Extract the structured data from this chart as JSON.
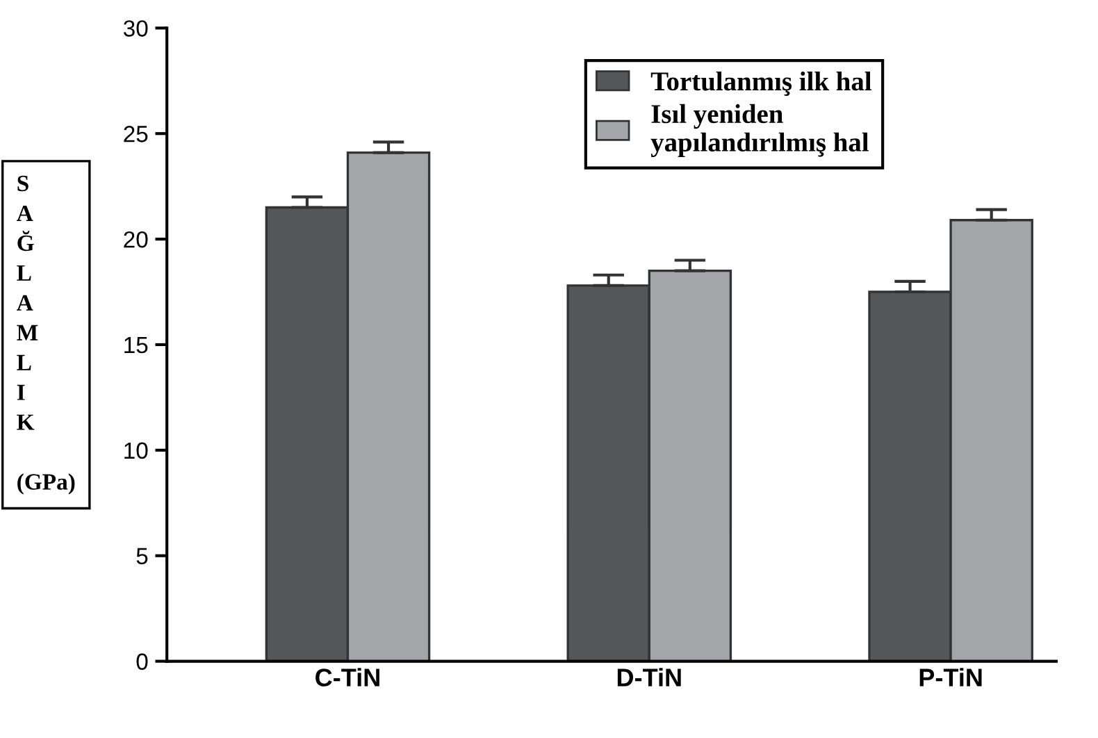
{
  "chart_data": {
    "type": "bar",
    "ylabel": "SAĞLAMLIK (GPa)",
    "categories": [
      "C-TiN",
      "D-TiN",
      "P-TiN"
    ],
    "series": [
      {
        "name": "Tortulanmış ilk hal",
        "color": "#555658",
        "values": [
          21.5,
          17.8,
          17.5
        ],
        "errors": [
          [
            21.5,
            22.0
          ],
          [
            17.8,
            18.3
          ],
          [
            17.5,
            18.0
          ]
        ]
      },
      {
        "name": "Isıl yeniden\nyapılandırılmış hal",
        "color": "#a3a6a9",
        "values": [
          24.1,
          18.5,
          20.9
        ],
        "errors": [
          [
            24.1,
            24.6
          ],
          [
            18.5,
            19.0
          ],
          [
            20.9,
            21.4
          ]
        ]
      }
    ],
    "ylim": [
      0,
      30
    ],
    "yticks": [
      0,
      5,
      10,
      15,
      20,
      25,
      30
    ],
    "grid": false,
    "legend": "top right"
  }
}
